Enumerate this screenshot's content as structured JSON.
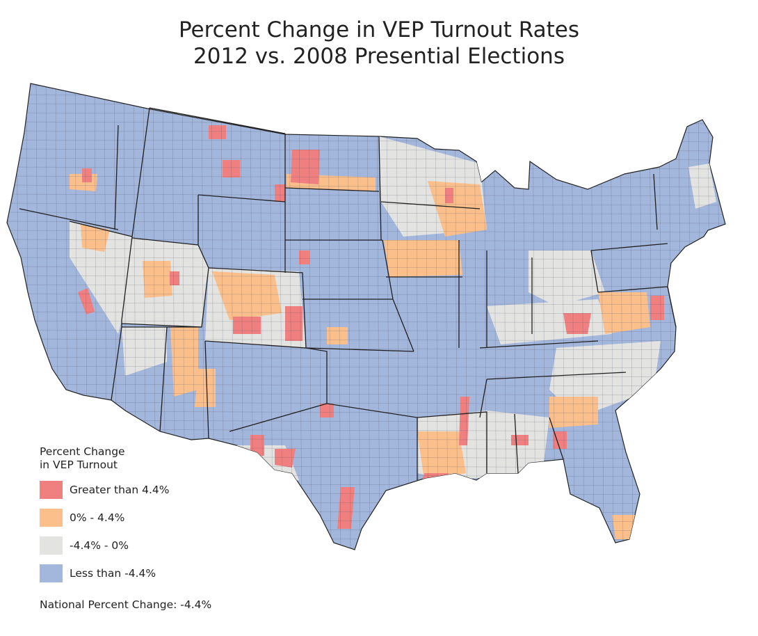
{
  "title": {
    "line1": "Percent Change in VEP Turnout Rates",
    "line2": "2012 vs. 2008 Presential Elections"
  },
  "legend": {
    "title_line1": "Percent Change",
    "title_line2": "in VEP Turnout",
    "items": [
      {
        "label": "Greater than 4.4%",
        "color": "#f08080"
      },
      {
        "label": "0% - 4.4%",
        "color": "#fbbf8c"
      },
      {
        "label": "-4.4% - 0%",
        "color": "#e3e4e2"
      },
      {
        "label": "Less than -4.4%",
        "color": "#a3b6dc"
      }
    ]
  },
  "national": {
    "label": "National Percent Change:",
    "value": "-4.4%"
  },
  "colors": {
    "base": "#a3b6dc",
    "state_border": "#1f1f1f",
    "county_border": "#4a5060"
  }
}
